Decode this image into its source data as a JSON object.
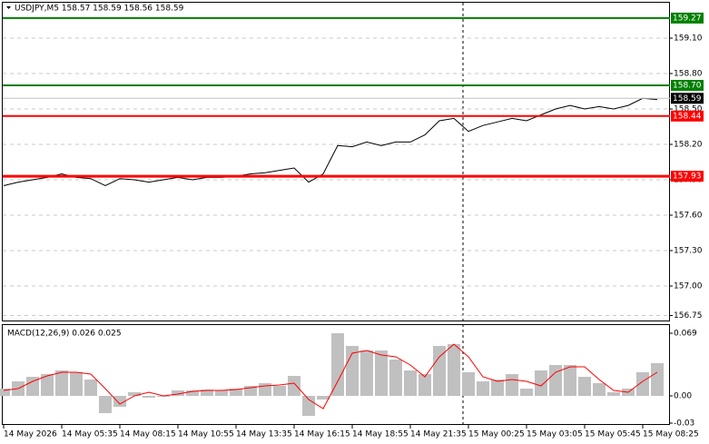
{
  "chart_data": [
    {
      "type": "line",
      "title": "USDJPY,M5  158.57 158.59 158.56 158.59",
      "categories": [
        "14 May 2026",
        null,
        null,
        null,
        "14 May 05:35",
        null,
        null,
        null,
        "14 May 08:15",
        null,
        null,
        null,
        "14 May 10:55",
        null,
        null,
        null,
        "14 May 13:35",
        null,
        null,
        null,
        "14 May 16:15",
        null,
        null,
        null,
        "14 May 18:55",
        null,
        null,
        null,
        "14 May 21:35",
        null,
        null,
        null,
        "15 May 00:25",
        null,
        null,
        null,
        "15 May 03:05",
        null,
        null,
        null,
        "15 May 05:45",
        null,
        null,
        null,
        "15 May 08:25",
        null
      ],
      "values": [
        157.85,
        157.88,
        157.9,
        157.92,
        157.95,
        157.92,
        157.91,
        157.85,
        157.91,
        157.9,
        157.88,
        157.9,
        157.92,
        157.9,
        157.92,
        157.92,
        157.93,
        157.95,
        157.96,
        157.98,
        158.0,
        157.88,
        157.95,
        158.19,
        158.18,
        158.22,
        158.19,
        158.22,
        158.22,
        158.28,
        158.4,
        158.42,
        158.31,
        158.36,
        158.39,
        158.42,
        158.4,
        158.45,
        158.5,
        158.53,
        158.5,
        158.52,
        158.5,
        158.53,
        158.59,
        158.58
      ],
      "color": "#000000",
      "ylim": [
        156.7,
        159.4
      ],
      "yticks": [
        {
          "value": 159.1,
          "label": "159.10"
        },
        {
          "value": 158.8,
          "label": "158.80"
        },
        {
          "value": 158.5,
          "label": "158.50"
        },
        {
          "value": 158.2,
          "label": "158.20"
        },
        {
          "value": 157.9,
          "label": "157.90"
        },
        {
          "value": 157.6,
          "label": "157.60"
        },
        {
          "value": 157.3,
          "label": "157.30"
        },
        {
          "value": 157.0,
          "label": "157.00"
        },
        156.75
      ],
      "grid": true,
      "price_lines": [
        {
          "value": 159.27,
          "color": "#008000"
        },
        {
          "value": 158.7,
          "label": "158.70",
          "color": "#008000"
        },
        {
          "value": 158.44,
          "color": "#ff0000"
        },
        {
          "value": 157.93,
          "color": "#ff0000"
        }
      ],
      "last_price": {
        "value": 158.59,
        "color": "#000000"
      }
    },
    {
      "type": "macd",
      "title": "MACD(12,26,9) 0.026 0.025",
      "series": [
        {
          "kind": "bar",
          "color": "#c0c0c0",
          "values": [
            0.008,
            0.016,
            0.021,
            0.024,
            0.028,
            0.026,
            0.018,
            -0.019,
            -0.012,
            0.004,
            -0.002,
            -0.001,
            0.006,
            0.006,
            0.007,
            0.006,
            0.008,
            0.011,
            0.014,
            0.011,
            0.022,
            -0.022,
            -0.004,
            0.069,
            0.055,
            0.05,
            0.05,
            0.04,
            0.028,
            0.024,
            0.055,
            0.057,
            0.026,
            0.016,
            0.018,
            0.024,
            0.008,
            0.028,
            0.034,
            0.034,
            0.021,
            0.014,
            0.004,
            0.008,
            0.026,
            0.036
          ]
        },
        {
          "kind": "line",
          "color": "#ff0000",
          "values": [
            0.006,
            0.008,
            0.016,
            0.022,
            0.026,
            0.026,
            0.024,
            0.008,
            -0.009,
            0.0,
            0.004,
            0.0,
            0.002,
            0.005,
            0.006,
            0.006,
            0.007,
            0.009,
            0.011,
            0.012,
            0.014,
            -0.004,
            -0.014,
            0.016,
            0.047,
            0.05,
            0.045,
            0.043,
            0.034,
            0.021,
            0.043,
            0.057,
            0.043,
            0.021,
            0.016,
            0.018,
            0.016,
            0.011,
            0.026,
            0.032,
            0.032,
            0.018,
            0.006,
            0.004,
            0.016,
            0.026
          ]
        }
      ],
      "ylim": [
        -0.032,
        0.078
      ],
      "yticks": [
        0.069,
        {
          "value": 0,
          "label": "0.00"
        },
        -0.03
      ],
      "grid": false
    }
  ]
}
